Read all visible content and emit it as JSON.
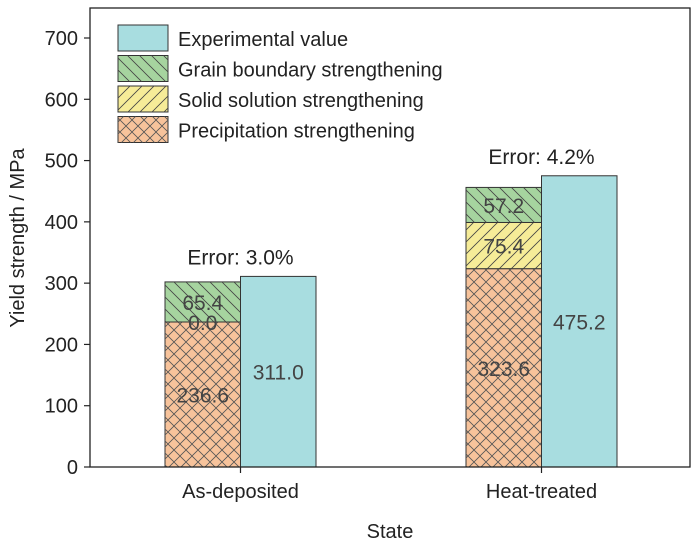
{
  "chart_data": {
    "type": "bar",
    "stacked": true,
    "title": "",
    "xlabel": "State",
    "ylabel": "Yield strength / MPa",
    "ylim": [
      0,
      700
    ],
    "yticks": [
      0,
      100,
      200,
      300,
      400,
      500,
      600,
      700
    ],
    "categories": [
      "As-deposited",
      "Heat-treated"
    ],
    "stacked_series": [
      {
        "name": "Precipitation strengthening",
        "values": [
          236.6,
          323.6
        ],
        "labels": [
          "236.6",
          "323.6"
        ],
        "color": "#F7C39B",
        "pattern": "crosshatch"
      },
      {
        "name": "Solid solution strengthening",
        "values": [
          0.0,
          75.4
        ],
        "labels": [
          "0.0",
          "75.4"
        ],
        "color": "#F6EC98",
        "pattern": "forward-diagonal"
      },
      {
        "name": "Grain boundary strengthening",
        "values": [
          65.4,
          57.2
        ],
        "labels": [
          "65.4",
          "57.2"
        ],
        "color": "#A6D49F",
        "pattern": "back-diagonal"
      }
    ],
    "experimental": {
      "name": "Experimental value",
      "values": [
        311.0,
        475.2
      ],
      "labels": [
        "311.0",
        "475.2"
      ],
      "color": "#A8DDE0"
    },
    "annotations": [
      "Error: 3.0%",
      "Error: 4.2%"
    ],
    "legend": {
      "placement": "top-left",
      "entries": [
        "Experimental value",
        "Grain boundary strengthening",
        "Solid solution strengthening",
        "Precipitation strengthening"
      ]
    },
    "grid": false
  }
}
